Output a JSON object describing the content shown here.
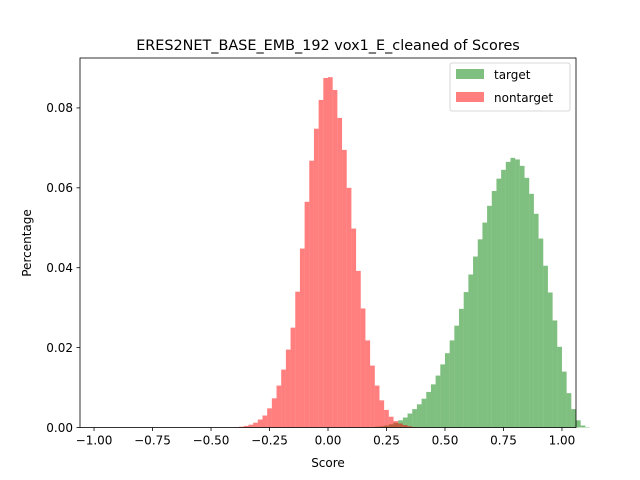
{
  "chart_data": {
    "type": "histogram",
    "title": "ERES2NET_BASE_EMB_192 vox1_E_cleaned of Scores",
    "xlabel": "Score",
    "ylabel": "Percentage",
    "xlim": [
      -1.06,
      1.06
    ],
    "ylim": [
      0,
      0.0925
    ],
    "x_ticks": [
      -1.0,
      -0.75,
      -0.5,
      -0.25,
      0.0,
      0.25,
      0.5,
      0.75,
      1.0
    ],
    "x_tick_labels": [
      "−1.00",
      "−0.75",
      "−0.50",
      "−0.25",
      "0.00",
      "0.25",
      "0.50",
      "0.75",
      "1.00"
    ],
    "y_ticks": [
      0.0,
      0.02,
      0.04,
      0.06,
      0.08
    ],
    "y_tick_labels": [
      "0.00",
      "0.02",
      "0.04",
      "0.06",
      "0.08"
    ],
    "legend_position": "upper right",
    "bin_width": 0.02,
    "series": [
      {
        "name": "target",
        "color": "#008000",
        "alpha": 0.5,
        "bin_start": 0.2,
        "values": [
          0.0002,
          0.0003,
          0.0005,
          0.0008,
          0.0012,
          0.0018,
          0.0025,
          0.0035,
          0.0046,
          0.0058,
          0.0072,
          0.0089,
          0.0108,
          0.013,
          0.0158,
          0.0186,
          0.0218,
          0.0255,
          0.0297,
          0.0339,
          0.0383,
          0.0428,
          0.0471,
          0.0513,
          0.0555,
          0.0592,
          0.0623,
          0.0645,
          0.0665,
          0.0675,
          0.0671,
          0.0655,
          0.0625,
          0.0585,
          0.0535,
          0.0473,
          0.0405,
          0.0338,
          0.0268,
          0.0202,
          0.014,
          0.0086,
          0.0046,
          0.0018,
          0.0005,
          0.0001
        ]
      },
      {
        "name": "nontarget",
        "color": "#ff0000",
        "alpha": 0.5,
        "bin_start": -0.4,
        "values": [
          0.0001,
          0.0002,
          0.0004,
          0.0007,
          0.0012,
          0.002,
          0.003,
          0.0048,
          0.0073,
          0.0105,
          0.0145,
          0.0195,
          0.025,
          0.034,
          0.0448,
          0.0565,
          0.0668,
          0.0748,
          0.082,
          0.0875,
          0.0877,
          0.0845,
          0.0775,
          0.0695,
          0.06,
          0.0498,
          0.0392,
          0.0298,
          0.0218,
          0.0155,
          0.0105,
          0.0068,
          0.0044,
          0.0027,
          0.0016,
          0.001,
          0.0006,
          0.0003,
          0.0001
        ]
      }
    ]
  }
}
